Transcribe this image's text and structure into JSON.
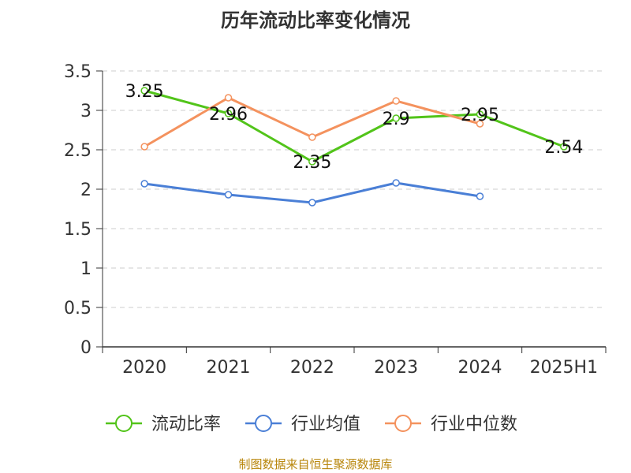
{
  "chart_data": {
    "type": "line",
    "title": "历年流动比率变化情况",
    "categories": [
      "2020",
      "2021",
      "2022",
      "2023",
      "2024",
      "2025H1"
    ],
    "ylim": [
      0,
      3.5
    ],
    "yticks": [
      "0",
      "0.5",
      "1",
      "1.5",
      "2",
      "2.5",
      "3",
      "3.5"
    ],
    "grid": true,
    "legend_position": "bottom",
    "series": [
      {
        "name": "流动比率",
        "color": "#52c41a",
        "values": [
          3.25,
          2.96,
          2.35,
          2.9,
          2.95,
          2.54
        ],
        "labels": [
          "3.25",
          "2.96",
          "2.35",
          "2.9",
          "2.95",
          "2.54"
        ]
      },
      {
        "name": "行业均值",
        "color": "#4a7fd6",
        "values": [
          2.07,
          1.93,
          1.83,
          2.08,
          1.91,
          null
        ]
      },
      {
        "name": "行业中位数",
        "color": "#f4925e",
        "values": [
          2.54,
          3.16,
          2.66,
          3.12,
          2.83,
          null
        ]
      }
    ]
  },
  "source_note": "制图数据来自恒生聚源数据库"
}
